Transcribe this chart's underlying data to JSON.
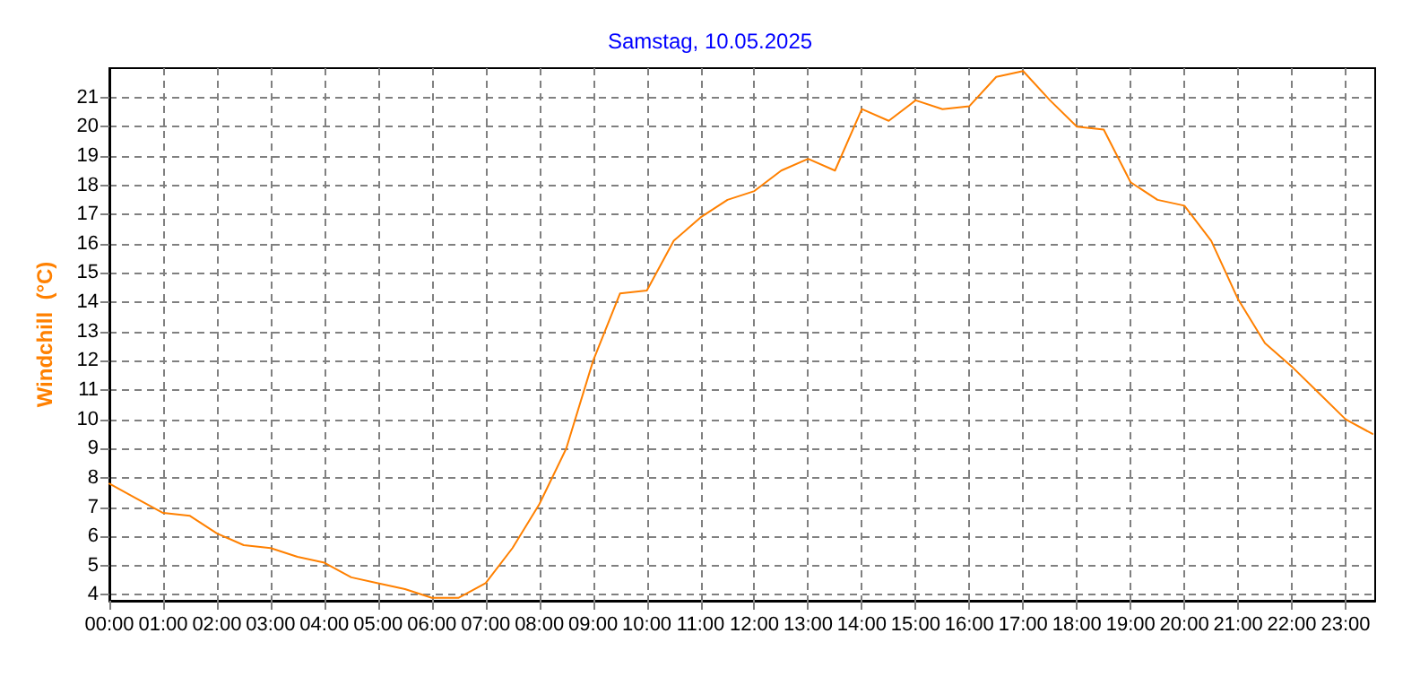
{
  "chart_data": {
    "type": "line",
    "title": "Samstag, 10.05.2025",
    "ylabel": "Windchill  (°C)",
    "x": [
      0,
      0.5,
      1,
      1.5,
      2,
      2.5,
      3,
      3.5,
      4,
      4.5,
      5,
      5.5,
      6,
      6.5,
      7,
      7.5,
      8,
      8.5,
      9,
      9.5,
      10,
      10.5,
      11,
      11.5,
      12,
      12.5,
      13,
      13.5,
      14,
      14.5,
      15,
      15.5,
      16,
      16.5,
      17,
      17.5,
      18,
      18.5,
      19,
      19.5,
      20,
      20.5,
      21,
      21.5,
      22,
      22.5,
      23,
      23.5
    ],
    "series": [
      {
        "color": "#ff8000",
        "values": [
          7.8,
          7.3,
          6.8,
          6.7,
          6.1,
          5.7,
          5.6,
          5.3,
          5.1,
          4.6,
          4.4,
          4.2,
          3.9,
          3.9,
          4.4,
          5.6,
          7.1,
          9.0,
          12.0,
          14.3,
          14.4,
          16.1,
          16.9,
          17.5,
          17.8,
          18.5,
          18.9,
          18.5,
          20.6,
          20.2,
          20.9,
          20.6,
          20.7,
          21.7,
          21.9,
          20.9,
          20.0,
          19.9,
          18.1,
          17.5,
          17.3,
          16.1,
          14.1,
          12.6,
          11.8,
          10.9,
          10.0,
          9.5
        ]
      }
    ],
    "xlim": [
      0,
      23.55
    ],
    "ylim": [
      3.8,
      22
    ],
    "xticks": [
      {
        "value": 0,
        "label": "00:00"
      },
      {
        "value": 1,
        "label": "01:00"
      },
      {
        "value": 2,
        "label": "02:00"
      },
      {
        "value": 3,
        "label": "03:00"
      },
      {
        "value": 4,
        "label": "04:00"
      },
      {
        "value": 5,
        "label": "05:00"
      },
      {
        "value": 6,
        "label": "06:00"
      },
      {
        "value": 7,
        "label": "07:00"
      },
      {
        "value": 8,
        "label": "08:00"
      },
      {
        "value": 9,
        "label": "09:00"
      },
      {
        "value": 10,
        "label": "10:00"
      },
      {
        "value": 11,
        "label": "11:00"
      },
      {
        "value": 12,
        "label": "12:00"
      },
      {
        "value": 13,
        "label": "13:00"
      },
      {
        "value": 14,
        "label": "14:00"
      },
      {
        "value": 15,
        "label": "15:00"
      },
      {
        "value": 16,
        "label": "16:00"
      },
      {
        "value": 17,
        "label": "17:00"
      },
      {
        "value": 18,
        "label": "18:00"
      },
      {
        "value": 19,
        "label": "19:00"
      },
      {
        "value": 20,
        "label": "20:00"
      },
      {
        "value": 21,
        "label": "21:00"
      },
      {
        "value": 22,
        "label": "22:00"
      },
      {
        "value": 23,
        "label": "23:00"
      }
    ],
    "yticks": [
      4,
      5,
      6,
      7,
      8,
      9,
      10,
      11,
      12,
      13,
      14,
      15,
      16,
      17,
      18,
      19,
      20,
      21
    ],
    "grid": true,
    "marker": "none",
    "line_style": "solid"
  }
}
